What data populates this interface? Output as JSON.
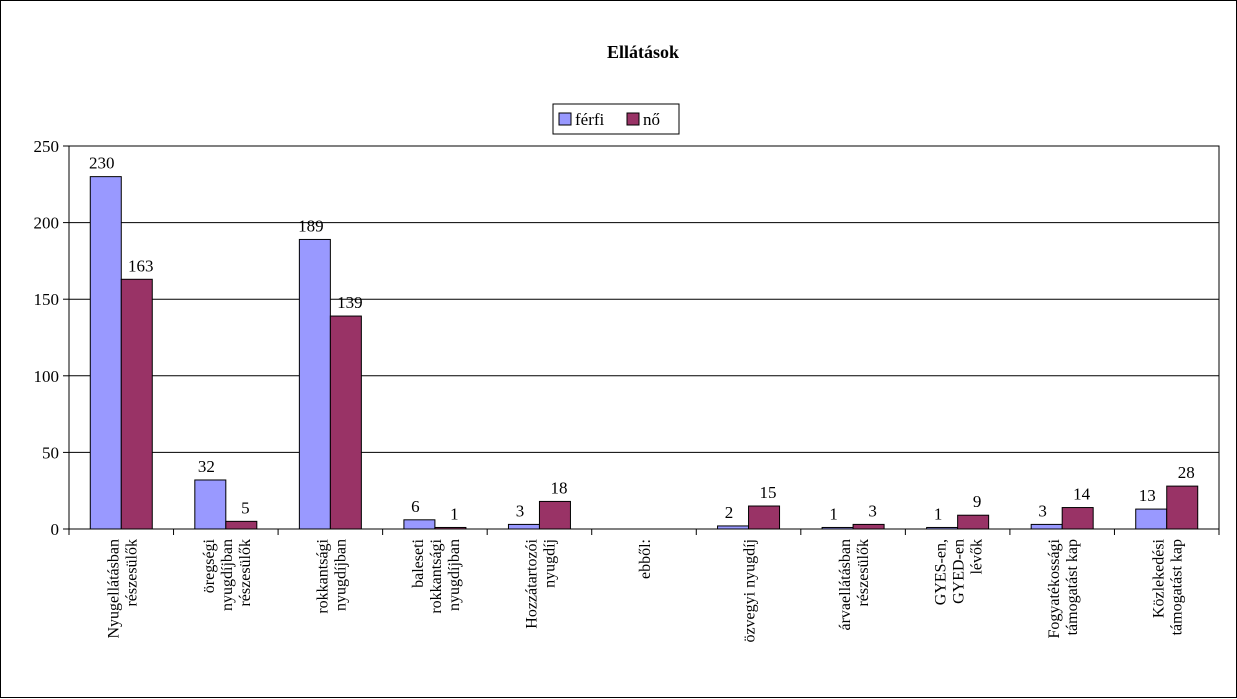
{
  "chart_data": {
    "type": "bar",
    "title": "Ellátások",
    "xlabel": "",
    "ylabel": "",
    "ylim": [
      0,
      250
    ],
    "yticks": [
      0,
      50,
      100,
      150,
      200,
      250
    ],
    "grid": true,
    "legend_position": "top-center",
    "categories": [
      [
        "Nyugellátásban",
        "részesülők"
      ],
      [
        "öregségi",
        "nyugdíjban",
        "részesülők"
      ],
      [
        "rokkantsági",
        "nyugdíjban"
      ],
      [
        "baleseti",
        "rokkantsági",
        "nyugdíjban"
      ],
      [
        "Hozzátartozói",
        "nyugdíj"
      ],
      [
        "ebből:"
      ],
      [
        "özvegyi nyugdíj"
      ],
      [
        "árvaellátásban",
        "részesülők"
      ],
      [
        "GYES-en,",
        "GYED-en",
        "lévők"
      ],
      [
        "Fogyatékossági",
        "támogatást kap"
      ],
      [
        "Közlekedési",
        "támogatást kap"
      ]
    ],
    "series": [
      {
        "name": "férfi",
        "color": "#9999FF",
        "values": [
          230,
          32,
          189,
          6,
          3,
          null,
          2,
          1,
          1,
          3,
          13
        ]
      },
      {
        "name": "nő",
        "color": "#993366",
        "values": [
          163,
          5,
          139,
          1,
          18,
          null,
          15,
          3,
          9,
          14,
          28
        ]
      }
    ]
  }
}
